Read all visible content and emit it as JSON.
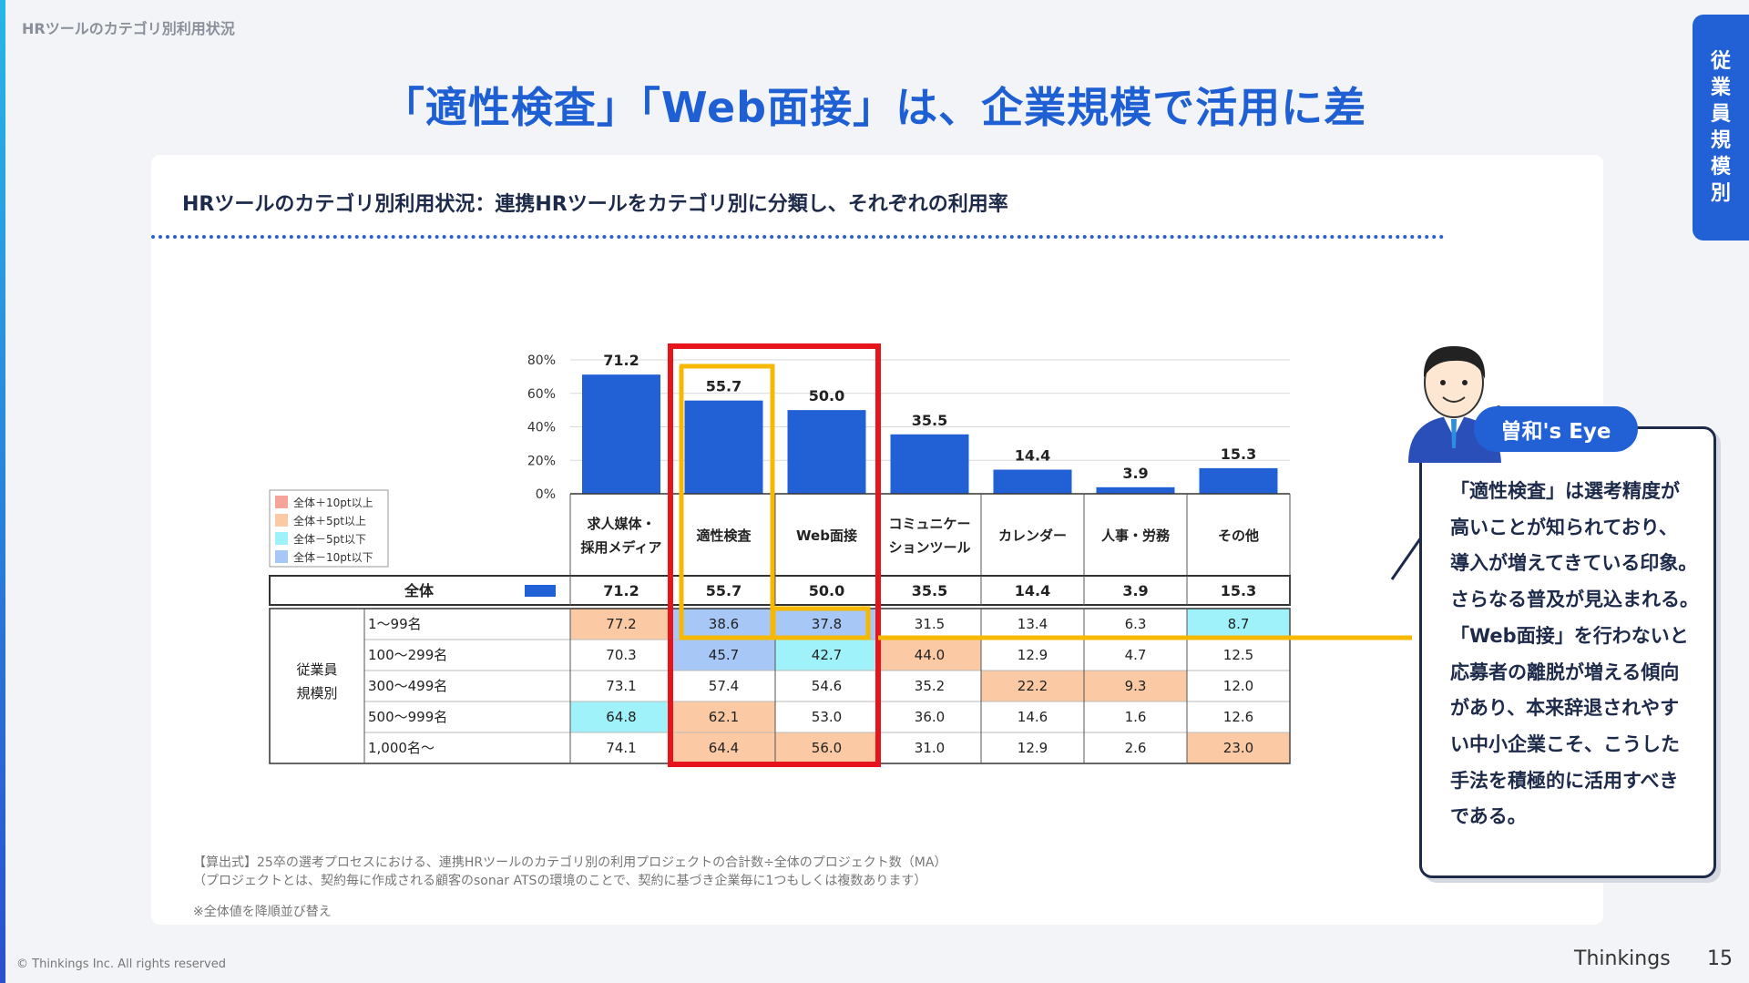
{
  "breadcrumb": "HRツールのカテゴリ別利用状況",
  "page_title": "「適性検査」「Web面接」は、企業規模で活用に差",
  "side_tab": "従業員規模別",
  "card_title": "HRツールのカテゴリ別利用状況：連携HRツールをカテゴリ別に分類し、それぞれの利用率",
  "legend": [
    "全体＋10pt以上",
    "全体＋5pt以上",
    "全体－5pt以下",
    "全体－10pt以下"
  ],
  "colors": {
    "bar": "#2260d6",
    "plus10": "#f6a49a",
    "plus5": "#fbc9a3",
    "minus5": "#9ff2f9",
    "minus10": "#a7c8f6",
    "red_box": "#e8141c",
    "yellow_line": "#f6b800"
  },
  "chart_data": {
    "type": "bar",
    "categories": [
      "求人媒体・\n採用メディア",
      "適性検査",
      "Web面接",
      "コミュニケー\nションツール",
      "カレンダー",
      "人事・労務",
      "その他"
    ],
    "values": [
      71.2,
      55.7,
      50.0,
      35.5,
      14.4,
      3.9,
      15.3
    ],
    "value_labels": [
      "71.2",
      "55.7",
      "50.0",
      "35.5",
      "14.4",
      "3.9",
      "15.3"
    ],
    "y_ticks": [
      "80%",
      "60%",
      "40%",
      "20%",
      "0%"
    ],
    "ylim": [
      0,
      80
    ]
  },
  "table": {
    "total_label": "全体",
    "total_values": [
      "71.2",
      "55.7",
      "50.0",
      "35.5",
      "14.4",
      "3.9",
      "15.3"
    ],
    "group_label": [
      "従業員",
      "規模別"
    ],
    "rows": [
      {
        "label": "1～99名",
        "values": [
          "77.2",
          "38.6",
          "37.8",
          "31.5",
          "13.4",
          "6.3",
          "8.7"
        ],
        "levels": [
          "plus5",
          "minus10",
          "minus10",
          "",
          "",
          "",
          "minus5"
        ]
      },
      {
        "label": "100～299名",
        "values": [
          "70.3",
          "45.7",
          "42.7",
          "44.0",
          "12.9",
          "4.7",
          "12.5"
        ],
        "levels": [
          "",
          "minus10",
          "minus5",
          "plus5",
          "",
          "",
          ""
        ]
      },
      {
        "label": "300～499名",
        "values": [
          "73.1",
          "57.4",
          "54.6",
          "35.2",
          "22.2",
          "9.3",
          "12.0"
        ],
        "levels": [
          "",
          "",
          "",
          "",
          "plus5",
          "plus5",
          ""
        ]
      },
      {
        "label": "500～999名",
        "values": [
          "64.8",
          "62.1",
          "53.0",
          "36.0",
          "14.6",
          "1.6",
          "12.6"
        ],
        "levels": [
          "minus5",
          "plus5",
          "",
          "",
          "",
          "",
          ""
        ]
      },
      {
        "label": "1,000名～",
        "values": [
          "74.1",
          "64.4",
          "56.0",
          "31.0",
          "12.9",
          "2.6",
          "23.0"
        ],
        "levels": [
          "",
          "plus5",
          "plus5",
          "",
          "",
          "",
          "plus5"
        ]
      }
    ]
  },
  "notes": [
    "【算出式】25卒の選考プロセスにおける、連携HRツールのカテゴリ別の利用プロジェクトの合計数÷全体のプロジェクト数（MA）",
    "（プロジェクトとは、契約毎に作成される顧客のsonar ATSの環境のことで、契約に基づき企業毎に1つもしくは複数あります）",
    "※全体値を降順並び替え"
  ],
  "eye_badge": "曽和's Eye",
  "comment_lines": [
    "「適性検査」は選考精度が",
    "高いことが知られており、",
    "導入が増えてきている印象。",
    "さらなる普及が見込まれる。",
    "「Web面接」を行わないと",
    "応募者の離脱が増える傾向",
    "があり、本来辞退されやす",
    "い中小企業こそ、こうした",
    "手法を積極的に活用すべき",
    "である。"
  ],
  "copyright": "© Thinkings Inc. All rights reserved",
  "brand": "Thinkings",
  "page_number": "15"
}
